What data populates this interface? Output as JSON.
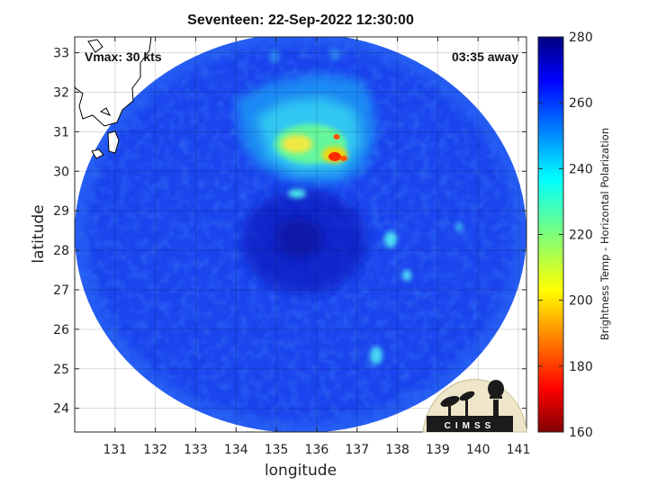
{
  "title": "Seventeen: 22-Sep-2022 12:30:00",
  "vmax_label": "Vmax: 30 kts",
  "away_label": "03:35 away",
  "xlabel": "longitude",
  "ylabel": "latitude",
  "colorbar_label": "Brightness Temp - Horizontal Polarization",
  "logo_text": "CIMSS",
  "chart_data": {
    "type": "heatmap",
    "xlim": [
      130,
      141.2
    ],
    "ylim": [
      23.4,
      33.4
    ],
    "xticks": [
      "131",
      "132",
      "133",
      "134",
      "135",
      "136",
      "137",
      "138",
      "139",
      "140",
      "141"
    ],
    "yticks": [
      "24",
      "25",
      "26",
      "27",
      "28",
      "29",
      "30",
      "31",
      "32",
      "33"
    ],
    "colorbar": {
      "min": 160,
      "max": 280,
      "ticks": [
        "160",
        "180",
        "200",
        "220",
        "240",
        "260",
        "280"
      ],
      "colormap": "jet"
    },
    "swath_center": [
      135.75,
      28.4
    ],
    "swath_background_value": 262,
    "storm_center": [
      136.0,
      28.0
    ],
    "features": [
      {
        "name": "cold cloud region",
        "lon": 136.2,
        "lat": 30.6,
        "value": 230
      },
      {
        "name": "deep convection core",
        "lon": 136.1,
        "lat": 30.6,
        "value": 205
      },
      {
        "name": "deep convection core",
        "lon": 136.55,
        "lat": 30.25,
        "value": 188
      },
      {
        "name": "deep convection core",
        "lon": 136.55,
        "lat": 30.8,
        "value": 190
      },
      {
        "name": "rainband",
        "lon": 137.4,
        "lat": 28.3,
        "value": 238
      },
      {
        "name": "rainband",
        "lon": 138.1,
        "lat": 27.1,
        "value": 240
      },
      {
        "name": "rainband",
        "lon": 137.1,
        "lat": 25.3,
        "value": 242
      },
      {
        "name": "coastline",
        "region": "land at top-left",
        "lon_range": [
          130,
          133.5
        ],
        "lat_range": [
          31.2,
          33.4
        ]
      }
    ],
    "grid": true
  }
}
